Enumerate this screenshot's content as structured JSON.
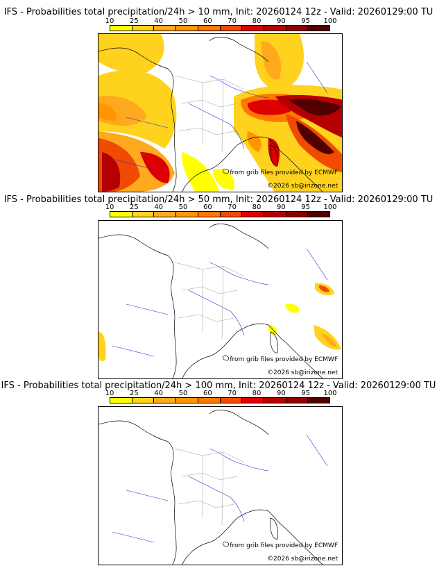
{
  "colorbar": {
    "ticks": [
      "10",
      "25",
      "40",
      "50",
      "60",
      "70",
      "80",
      "90",
      "95",
      "100"
    ],
    "colors": [
      "#ffff00",
      "#ffd21e",
      "#ffaa1e",
      "#ff9600",
      "#ff7800",
      "#f04b00",
      "#dc0000",
      "#b40000",
      "#8c0000",
      "#500000"
    ]
  },
  "panels": [
    {
      "title": "IFS - Probabilities total precipitation/24h > 10 mm, Init: 20260124 12z - Valid: 20260129:00 TU",
      "credit_source": "from grib files provided by ECMWF",
      "credit_copyright": "©2026 sb@irizone.net"
    },
    {
      "title": "IFS - Probabilities total precipitation/24h > 50 mm, Init: 20260124 12z - Valid: 20260129:00 TU",
      "credit_source": "from grib files provided by ECMWF",
      "credit_copyright": "©2026 sb@irizone.net"
    },
    {
      "title": "IFS - Probabilities total precipitation/24h > 100 mm, Init: 20260124 12z - Valid: 20260129:00 TU",
      "credit_source": "from grib files provided by ECMWF",
      "credit_copyright": "©2026 sb@irizone.net"
    }
  ]
}
